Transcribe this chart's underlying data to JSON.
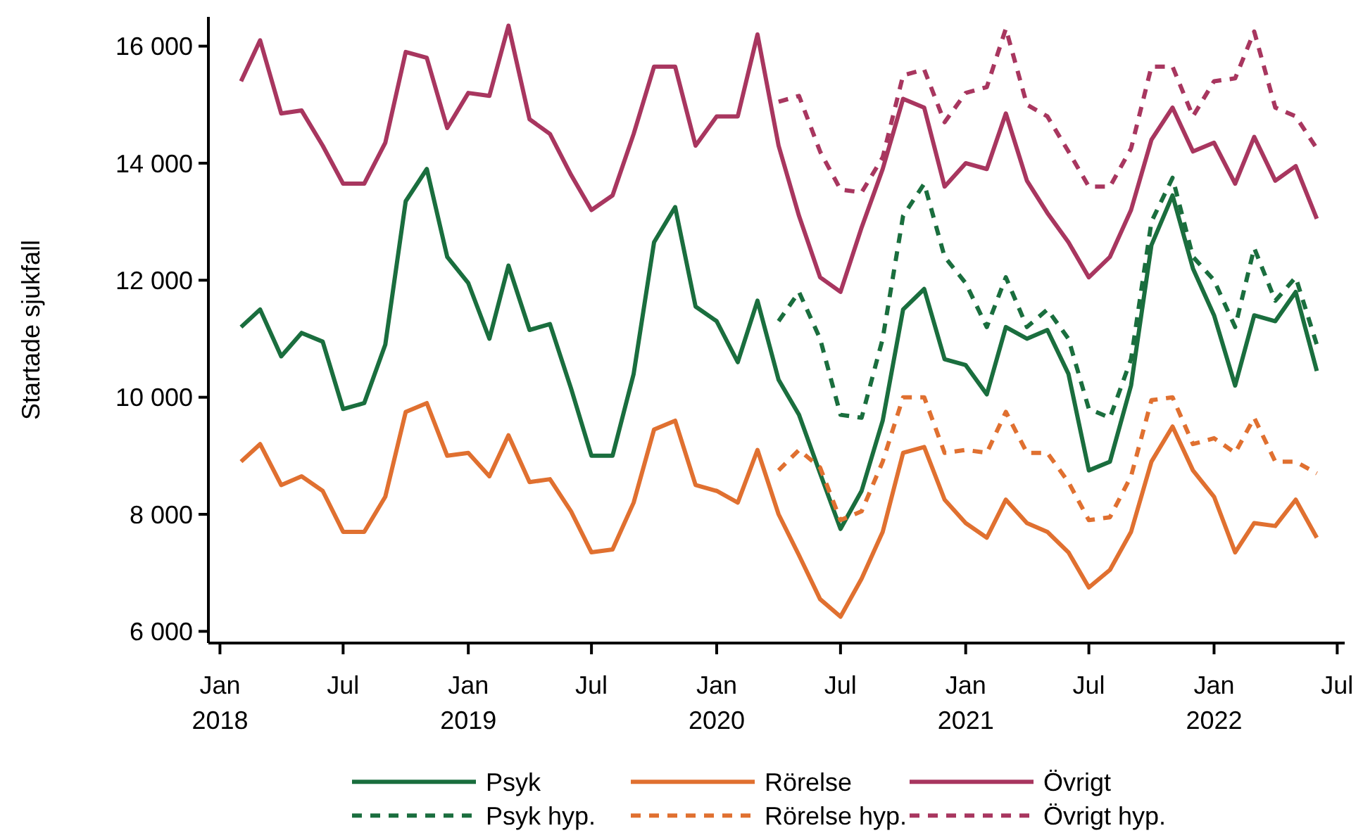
{
  "chart_data": {
    "type": "line",
    "ylabel": "Startade sjukfall",
    "legend": "bottom",
    "grid": false,
    "x": [
      "2018-02",
      "2018-03",
      "2018-04",
      "2018-05",
      "2018-06",
      "2018-07",
      "2018-08",
      "2018-09",
      "2018-10",
      "2018-11",
      "2018-12",
      "2019-01",
      "2019-02",
      "2019-03",
      "2019-04",
      "2019-05",
      "2019-06",
      "2019-07",
      "2019-08",
      "2019-09",
      "2019-10",
      "2019-11",
      "2019-12",
      "2020-01",
      "2020-02",
      "2020-03",
      "2020-04",
      "2020-05",
      "2020-06",
      "2020-07",
      "2020-08",
      "2020-09",
      "2020-10",
      "2020-11",
      "2020-12",
      "2021-01",
      "2021-02",
      "2021-03",
      "2021-04",
      "2021-05",
      "2021-06",
      "2021-07",
      "2021-08",
      "2021-09",
      "2021-10",
      "2021-11",
      "2021-12",
      "2022-01",
      "2022-02",
      "2022-03",
      "2022-04",
      "2022-05",
      "2022-06"
    ],
    "xlim": [
      "2017-12-15",
      "2022-07-12"
    ],
    "xticks": [
      {
        "value": "2018-01",
        "label": "Jan 2018"
      },
      {
        "value": "2018-07",
        "label": "Jul"
      },
      {
        "value": "2019-01",
        "label": "Jan 2019"
      },
      {
        "value": "2019-07",
        "label": "Jul"
      },
      {
        "value": "2020-01",
        "label": "Jan 2020"
      },
      {
        "value": "2020-07",
        "label": "Jul"
      },
      {
        "value": "2021-01",
        "label": "Jan 2021"
      },
      {
        "value": "2021-07",
        "label": "Jul"
      },
      {
        "value": "2022-01",
        "label": "Jan 2022"
      },
      {
        "value": "2022-07",
        "label": "Jul"
      }
    ],
    "ylim": [
      5800,
      16500
    ],
    "yticks": [
      {
        "value": 6000,
        "label": "6 000"
      },
      {
        "value": 8000,
        "label": "8 000"
      },
      {
        "value": 10000,
        "label": "10 000"
      },
      {
        "value": 12000,
        "label": "12 000"
      },
      {
        "value": 14000,
        "label": "14 000"
      },
      {
        "value": 16000,
        "label": "16 000"
      }
    ],
    "series": [
      {
        "name": "Psyk",
        "color": "#1a6e3e",
        "line_style": "solid",
        "values": [
          11200,
          11500,
          10700,
          11100,
          10950,
          9800,
          9900,
          10900,
          13350,
          13900,
          12400,
          11950,
          11000,
          12250,
          11150,
          11250,
          10150,
          9000,
          9000,
          10400,
          12650,
          13250,
          11550,
          11300,
          10600,
          11650,
          10300,
          9700,
          8700,
          7750,
          8400,
          9600,
          11500,
          11850,
          10650,
          10550,
          10050,
          11200,
          11000,
          11150,
          10400,
          8750,
          8900,
          10200,
          12600,
          13450,
          12200,
          11400,
          10200,
          11400,
          11300,
          11800,
          10450
        ]
      },
      {
        "name": "Rörelse",
        "color": "#e07030",
        "line_style": "solid",
        "values": [
          8900,
          9200,
          8500,
          8650,
          8400,
          7700,
          7700,
          8300,
          9750,
          9900,
          9000,
          9050,
          8650,
          9350,
          8550,
          8600,
          8050,
          7350,
          7400,
          8200,
          9450,
          9600,
          8500,
          8400,
          8200,
          9100,
          8000,
          7300,
          6550,
          6250,
          6900,
          7700,
          9050,
          9150,
          8250,
          7850,
          7600,
          8250,
          7850,
          7700,
          7350,
          6750,
          7050,
          7700,
          8900,
          9500,
          8750,
          8300,
          7350,
          7850,
          7800,
          8250,
          7600
        ]
      },
      {
        "name": "Övrigt",
        "color": "#a8365f",
        "line_style": "solid",
        "values": [
          15400,
          16100,
          14850,
          14900,
          14300,
          13650,
          13650,
          14350,
          15900,
          15800,
          14600,
          15200,
          15150,
          16350,
          14750,
          14500,
          13800,
          13200,
          13450,
          14500,
          15650,
          15650,
          14300,
          14800,
          14800,
          16200,
          14300,
          13100,
          12050,
          11800,
          12900,
          13900,
          15100,
          14950,
          13600,
          14000,
          13900,
          14850,
          13700,
          13150,
          12650,
          12050,
          12400,
          13200,
          14400,
          14950,
          14200,
          14350,
          13650,
          14450,
          13700,
          13950,
          13050
        ]
      },
      {
        "name": "Psyk hyp.",
        "color": "#1a6e3e",
        "line_style": "dashed",
        "x": [
          "2020-04",
          "2020-05",
          "2020-06",
          "2020-07",
          "2020-08",
          "2020-09",
          "2020-10",
          "2020-11",
          "2020-12",
          "2021-01",
          "2021-02",
          "2021-03",
          "2021-04",
          "2021-05",
          "2021-06",
          "2021-07",
          "2021-08",
          "2021-09",
          "2021-10",
          "2021-11",
          "2021-12",
          "2022-01",
          "2022-02",
          "2022-03",
          "2022-04",
          "2022-05",
          "2022-06"
        ],
        "values": [
          11300,
          11800,
          11000,
          9700,
          9650,
          11000,
          13100,
          13650,
          12400,
          11950,
          11200,
          12050,
          11200,
          11500,
          11000,
          9800,
          9650,
          10650,
          13000,
          13750,
          12400,
          12000,
          11200,
          12550,
          11650,
          12050,
          10900
        ]
      },
      {
        "name": "Rörelse hyp.",
        "color": "#e07030",
        "line_style": "dashed",
        "x": [
          "2020-04",
          "2020-05",
          "2020-06",
          "2020-07",
          "2020-08",
          "2020-09",
          "2020-10",
          "2020-11",
          "2020-12",
          "2021-01",
          "2021-02",
          "2021-03",
          "2021-04",
          "2021-05",
          "2021-06",
          "2021-07",
          "2021-08",
          "2021-09",
          "2021-10",
          "2021-11",
          "2021-12",
          "2022-01",
          "2022-02",
          "2022-03",
          "2022-04",
          "2022-05",
          "2022-06"
        ],
        "values": [
          8750,
          9100,
          8800,
          7900,
          8050,
          8900,
          10000,
          10000,
          9050,
          9100,
          9050,
          9750,
          9050,
          9050,
          8550,
          7900,
          7950,
          8650,
          9950,
          10000,
          9200,
          9300,
          9050,
          9650,
          8900,
          8900,
          8700
        ]
      },
      {
        "name": "Övrigt hyp.",
        "color": "#a8365f",
        "line_style": "dashed",
        "x": [
          "2020-04",
          "2020-05",
          "2020-06",
          "2020-07",
          "2020-08",
          "2020-09",
          "2020-10",
          "2020-11",
          "2020-12",
          "2021-01",
          "2021-02",
          "2021-03",
          "2021-04",
          "2021-05",
          "2021-06",
          "2021-07",
          "2021-08",
          "2021-09",
          "2021-10",
          "2021-11",
          "2021-12",
          "2022-01",
          "2022-02",
          "2022-03",
          "2022-04",
          "2022-05",
          "2022-06"
        ],
        "values": [
          15050,
          15150,
          14200,
          13550,
          13500,
          14100,
          15500,
          15600,
          14700,
          15200,
          15300,
          16300,
          15000,
          14800,
          14200,
          13600,
          13600,
          14250,
          15650,
          15650,
          14800,
          15400,
          15450,
          16250,
          14950,
          14800,
          14250
        ]
      }
    ]
  }
}
